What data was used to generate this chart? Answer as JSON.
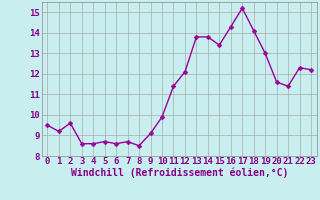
{
  "x": [
    0,
    1,
    2,
    3,
    4,
    5,
    6,
    7,
    8,
    9,
    10,
    11,
    12,
    13,
    14,
    15,
    16,
    17,
    18,
    19,
    20,
    21,
    22,
    23
  ],
  "y": [
    9.5,
    9.2,
    9.6,
    8.6,
    8.6,
    8.7,
    8.6,
    8.7,
    8.5,
    9.1,
    9.9,
    11.4,
    12.1,
    13.8,
    13.8,
    13.4,
    14.3,
    15.2,
    14.1,
    13.0,
    11.6,
    11.4,
    12.3,
    12.2
  ],
  "line_color": "#990099",
  "marker_color": "#990099",
  "bg_color": "#c8eef0",
  "grid_color": "#aaaaaa",
  "xlabel": "Windchill (Refroidissement éolien,°C)",
  "ylim": [
    8,
    15.5
  ],
  "xlim": [
    -0.5,
    23.5
  ],
  "yticks": [
    8,
    9,
    10,
    11,
    12,
    13,
    14,
    15
  ],
  "xticks": [
    0,
    1,
    2,
    3,
    4,
    5,
    6,
    7,
    8,
    9,
    10,
    11,
    12,
    13,
    14,
    15,
    16,
    17,
    18,
    19,
    20,
    21,
    22,
    23
  ],
  "xlabel_fontsize": 7.0,
  "tick_fontsize": 6.5,
  "line_width": 1.0,
  "marker_size": 2.5
}
